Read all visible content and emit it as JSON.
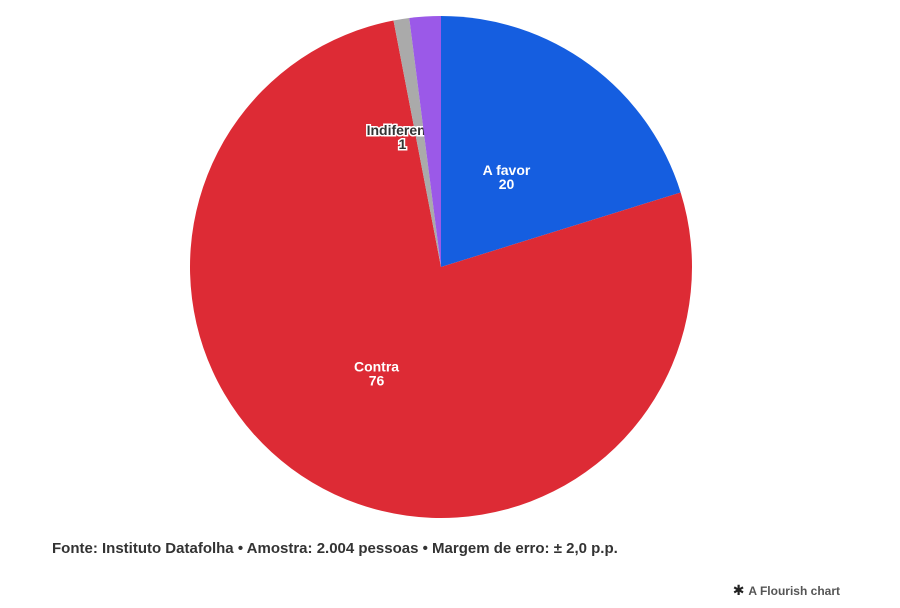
{
  "chart_data": {
    "type": "pie",
    "slices": [
      {
        "label": "A favor",
        "value": 20,
        "color": "#155ee0"
      },
      {
        "label": "Contra",
        "value": 76,
        "color": "#dd2b35"
      },
      {
        "label": "Indiferente",
        "value": 1,
        "color": "#aaaaaa"
      },
      {
        "label": "",
        "value": 2,
        "color": "#9b59e8"
      }
    ]
  },
  "footer": {
    "source": "Fonte: Instituto Datafolha • Amostra: 2.004 pessoas • Margem de erro: ± 2,0 p.p.",
    "credit": "A Flourish chart",
    "credit_icon": "flourish-star-icon"
  }
}
